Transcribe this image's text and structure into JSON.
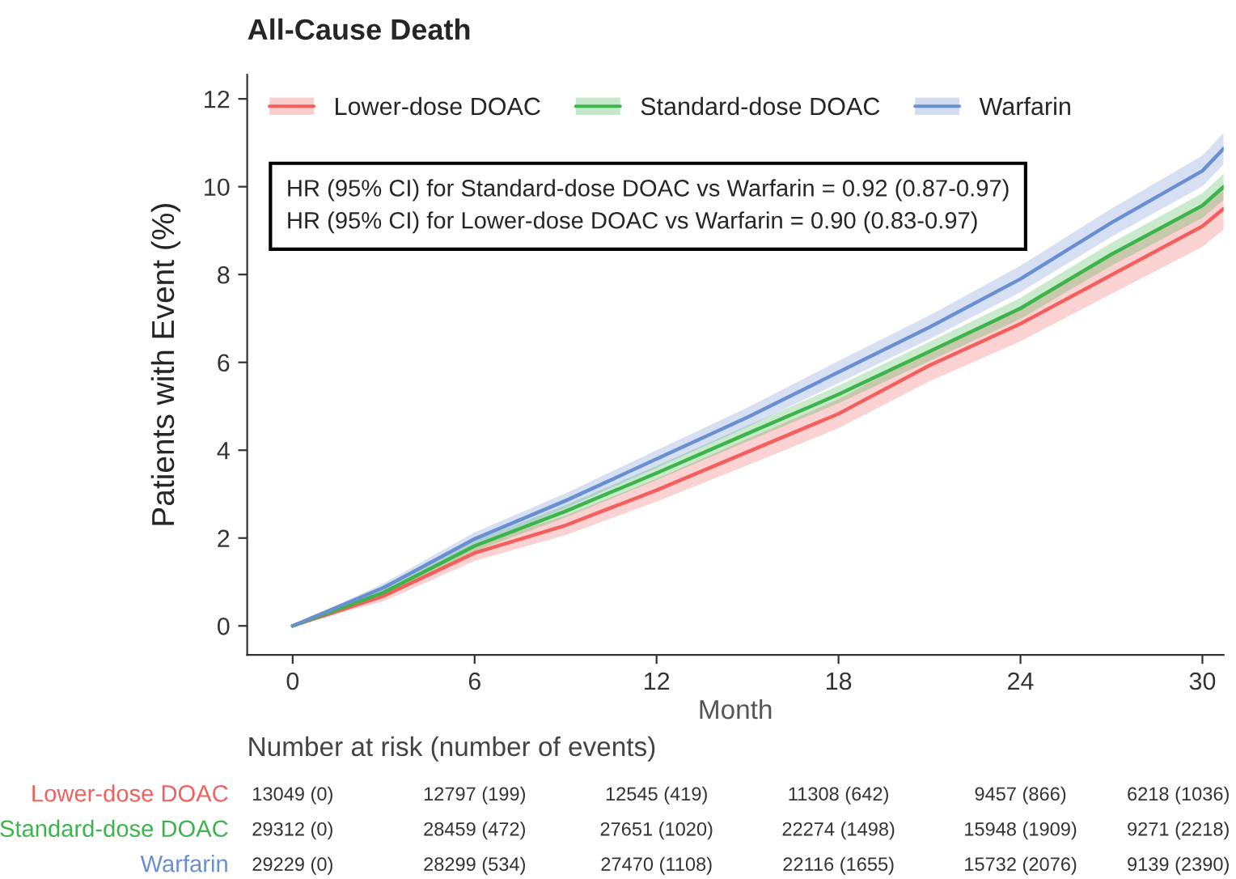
{
  "chart_data": {
    "type": "line",
    "title": "All-Cause Death",
    "xlabel": "Month",
    "ylabel": "Patients with Event (%)",
    "x": [
      0,
      3,
      6,
      9,
      12,
      15,
      18,
      21,
      24,
      27,
      30,
      30.7
    ],
    "series": [
      {
        "name": "Lower-dose DOAC",
        "color": "#f25f5c",
        "values": [
          0,
          0.68,
          1.66,
          2.29,
          3.09,
          3.96,
          4.83,
          5.93,
          6.88,
          7.99,
          9.1,
          9.5
        ],
        "lower": [
          0,
          0.56,
          1.48,
          2.07,
          2.83,
          3.66,
          4.5,
          5.57,
          6.48,
          7.56,
          8.63,
          9.02
        ],
        "upper": [
          0,
          0.8,
          1.84,
          2.51,
          3.35,
          4.26,
          5.16,
          6.29,
          7.28,
          8.42,
          9.57,
          9.98
        ]
      },
      {
        "name": "Standard-dose DOAC",
        "color": "#3cb44b",
        "values": [
          0,
          0.76,
          1.82,
          2.61,
          3.48,
          4.38,
          5.27,
          6.25,
          7.23,
          8.46,
          9.57,
          10.0
        ],
        "lower": [
          0,
          0.68,
          1.7,
          2.47,
          3.32,
          4.2,
          5.07,
          6.03,
          6.99,
          8.2,
          9.29,
          9.7
        ],
        "upper": [
          0,
          0.84,
          1.94,
          2.75,
          3.64,
          4.56,
          5.47,
          6.47,
          7.47,
          8.72,
          9.85,
          10.3
        ]
      },
      {
        "name": "Warfarin",
        "color": "#6a8fd0",
        "values": [
          0,
          0.87,
          1.98,
          2.85,
          3.8,
          4.75,
          5.78,
          6.8,
          7.9,
          9.18,
          10.36,
          10.87
        ],
        "lower": [
          0,
          0.77,
          1.83,
          2.68,
          3.6,
          4.53,
          5.53,
          6.53,
          7.6,
          8.86,
          10.01,
          10.51
        ],
        "upper": [
          0,
          0.97,
          2.13,
          3.02,
          4.0,
          4.97,
          6.03,
          7.07,
          8.2,
          9.5,
          10.71,
          11.23
        ]
      }
    ],
    "xlim": [
      -1.5,
      30.7
    ],
    "ylim": [
      -0.66,
      12.55
    ],
    "xticks": [
      0,
      6,
      12,
      18,
      24,
      30
    ],
    "yticks": [
      0,
      2,
      4,
      6,
      8,
      10,
      12
    ],
    "grid": false,
    "legend": "top left",
    "marker": "none",
    "line_style": "solid",
    "annotations": [
      "HR (95% CI) for Standard-dose DOAC vs Warfarin = 0.92 (0.87-0.97)",
      "HR (95% CI) for Lower-dose DOAC vs Warfarin = 0.90 (0.83-0.97)",
      "Number at risk (number of events)",
      "Lower-dose DOAC",
      "13049 (0)",
      "12797 (199)",
      "12545 (419)",
      "11308 (642)",
      "9457 (866)",
      "6218 (1036)",
      "Standard-dose DOAC",
      "29312 (0)",
      "28459 (472)",
      "27651 (1020)",
      "22274 (1498)",
      "15948 (1909)",
      "9271 (2218)",
      "Warfarin",
      "29229 (0)",
      "28299 (534)",
      "27470 (1108)",
      "22116 (1655)",
      "15732 (2076)",
      "9139 (2390)"
    ]
  }
}
